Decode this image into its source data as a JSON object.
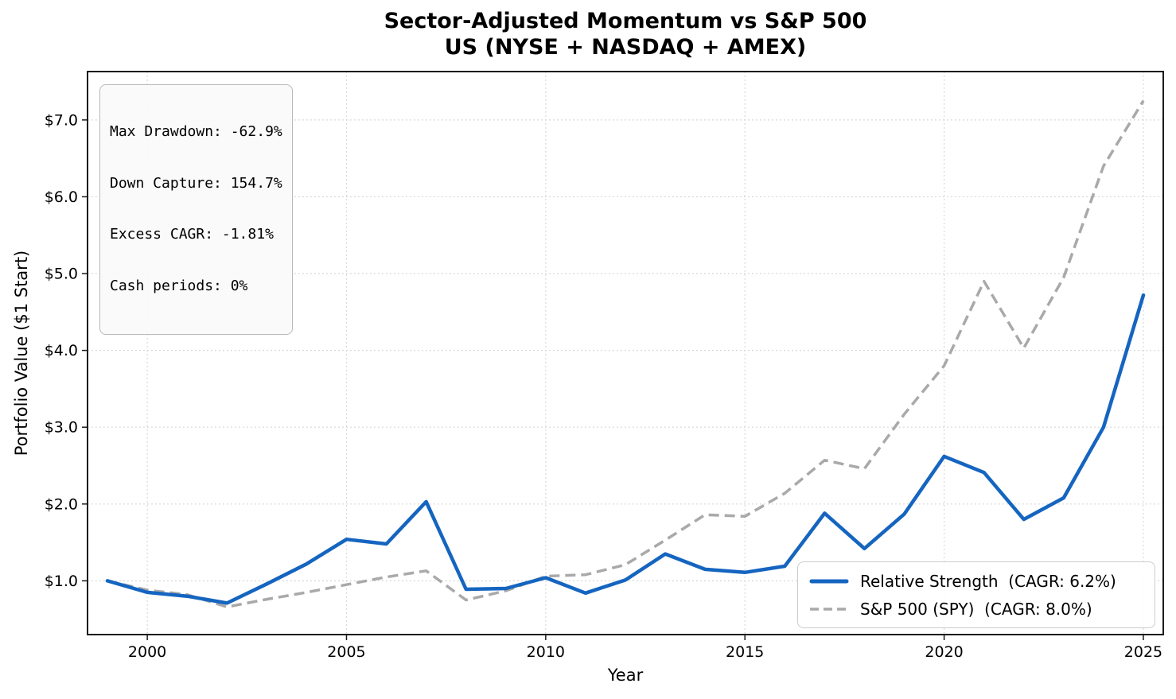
{
  "title": {
    "line1": "Sector-Adjusted Momentum vs S&P 500",
    "line2": "US (NYSE + NASDAQ + AMEX)"
  },
  "stats_box": {
    "lines": [
      "Max Drawdown: -62.9%",
      "Down Capture: 154.7%",
      "Excess CAGR: -1.81%",
      "Cash periods: 0%"
    ]
  },
  "chart_data": {
    "type": "line",
    "title": "Sector-Adjusted Momentum vs S&P 500 — US (NYSE + NASDAQ + AMEX)",
    "xlabel": "Year",
    "ylabel": "Portfolio Value ($1 Start)",
    "x": [
      1999,
      2000,
      2001,
      2002,
      2003,
      2004,
      2005,
      2006,
      2007,
      2008,
      2009,
      2010,
      2011,
      2012,
      2013,
      2014,
      2015,
      2016,
      2017,
      2018,
      2019,
      2020,
      2021,
      2022,
      2023,
      2024,
      2025
    ],
    "series": [
      {
        "name": "Relative Strength  (CAGR: 6.2%)",
        "color": "#1565c0",
        "style": "solid",
        "values": [
          1.0,
          0.85,
          0.8,
          0.71,
          0.96,
          1.22,
          1.54,
          1.48,
          2.03,
          0.89,
          0.9,
          1.04,
          0.84,
          1.01,
          1.35,
          1.15,
          1.11,
          1.19,
          1.88,
          1.42,
          1.87,
          2.62,
          2.41,
          1.8,
          2.08,
          3.0,
          4.72
        ]
      },
      {
        "name": "S&P 500 (SPY)  (CAGR: 8.0%)",
        "color": "#a9a9a9",
        "style": "dashed",
        "values": [
          1.0,
          0.88,
          0.82,
          0.66,
          0.76,
          0.85,
          0.95,
          1.05,
          1.13,
          0.75,
          0.87,
          1.06,
          1.08,
          1.21,
          1.53,
          1.86,
          1.84,
          2.14,
          2.57,
          2.46,
          3.17,
          3.8,
          4.9,
          4.03,
          4.95,
          6.4,
          7.25
        ]
      }
    ],
    "x_ticks": [
      2000,
      2005,
      2010,
      2015,
      2020,
      2025
    ],
    "y_ticks": [
      1,
      2,
      3,
      4,
      5,
      6,
      7
    ],
    "y_tick_labels": [
      "$1.0",
      "$2.0",
      "$3.0",
      "$4.0",
      "$5.0",
      "$6.0",
      "$7.0"
    ],
    "xlim": [
      1998.5,
      2025.5
    ],
    "ylim": [
      0.3,
      7.63
    ],
    "grid": true,
    "legend_position": "lower right"
  }
}
